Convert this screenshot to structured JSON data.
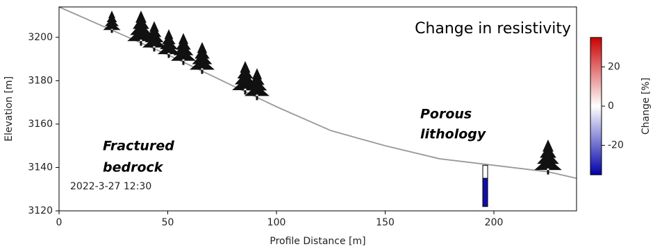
{
  "chart_data": {
    "type": "line",
    "xlabel": "Profile Distance [m]",
    "ylabel": "Elevation [m]",
    "x": [
      0,
      25,
      50,
      75,
      100,
      125,
      150,
      175,
      200,
      225,
      238
    ],
    "series": [
      {
        "color": "#999999",
        "values": [
          3214,
          3203,
          3192,
          3180,
          3168,
          3157,
          3150,
          3144,
          3141,
          3138,
          3135
        ]
      }
    ],
    "xlim": [
      0,
      238
    ],
    "xticks": [
      0,
      50,
      100,
      150,
      200
    ],
    "ylim": [
      3120,
      3214
    ],
    "yticks": [
      3120,
      3140,
      3160,
      3180,
      3200
    ],
    "borehole": {
      "x": 196,
      "segments": [
        {
          "top": 3141,
          "bottom": 3135,
          "change": 0
        },
        {
          "top": 3135,
          "bottom": 3122,
          "change": -33
        }
      ]
    },
    "colorbar": {
      "label": "Change [%]",
      "clim": [
        -35,
        35
      ],
      "ticks": [
        -20,
        0,
        20
      ],
      "colors": [
        "#0000aa",
        "#ffffff",
        "#cc0000"
      ]
    },
    "annotations": [
      {
        "lines": [
          "Change in resistivity"
        ]
      },
      {
        "lines": [
          "Porous",
          "lithology"
        ]
      },
      {
        "lines": [
          "Fractured",
          "bedrock"
        ]
      },
      {
        "lines": [
          "2022-3-27 12:30"
        ]
      }
    ]
  }
}
